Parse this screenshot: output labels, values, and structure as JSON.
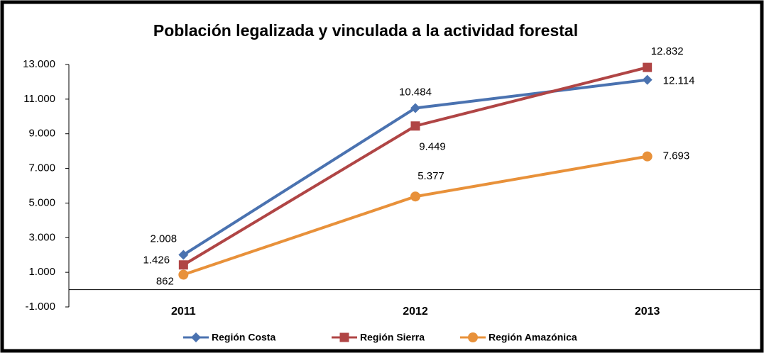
{
  "chart_data": {
    "type": "line",
    "title": "Población legalizada y vinculada a la actividad forestal",
    "categories": [
      "2011",
      "2012",
      "2013"
    ],
    "series": [
      {
        "name": "Región Costa",
        "color": "#4a72b0",
        "marker": "diamond",
        "values": [
          2008,
          10484,
          12114
        ],
        "value_labels": [
          "2.008",
          "10.484",
          "12.114"
        ]
      },
      {
        "name": "Región Sierra",
        "color": "#b04545",
        "marker": "square",
        "values": [
          1426,
          9449,
          12832
        ],
        "value_labels": [
          "1.426",
          "9.449",
          "12.832"
        ]
      },
      {
        "name": "Región Amazónica",
        "color": "#e8913a",
        "marker": "circle",
        "values": [
          862,
          5377,
          7693
        ],
        "value_labels": [
          "862",
          "5.377",
          "7.693"
        ]
      }
    ],
    "ylim": [
      -1000,
      13000
    ],
    "yticks": [
      {
        "value": -1000,
        "label": "-1.000"
      },
      {
        "value": 1000,
        "label": "1.000"
      },
      {
        "value": 3000,
        "label": "3.000"
      },
      {
        "value": 5000,
        "label": "5.000"
      },
      {
        "value": 7000,
        "label": "7.000"
      },
      {
        "value": 9000,
        "label": "9.000"
      },
      {
        "value": 11000,
        "label": "11.000"
      },
      {
        "value": 13000,
        "label": "13.000"
      }
    ],
    "grid": false,
    "legend": "bottom"
  }
}
